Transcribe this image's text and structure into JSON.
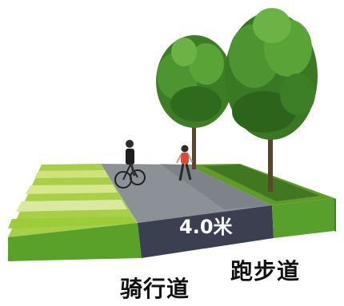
{
  "diagram": {
    "width_label": "4.0米",
    "zones": [
      {
        "label": "骑行道"
      },
      {
        "label": "跑步道"
      }
    ]
  },
  "colors": {
    "grass_top": "#6aa329",
    "grass_side": "#5aa12a",
    "path_top": "#8a9096",
    "path_side": "#3c4150",
    "lawn_stripe_light": "#c9e07a",
    "lawn_stripe_green": "#8fc43a",
    "tree_foliage": "#3f7f28",
    "trunk": "#5a4630"
  }
}
